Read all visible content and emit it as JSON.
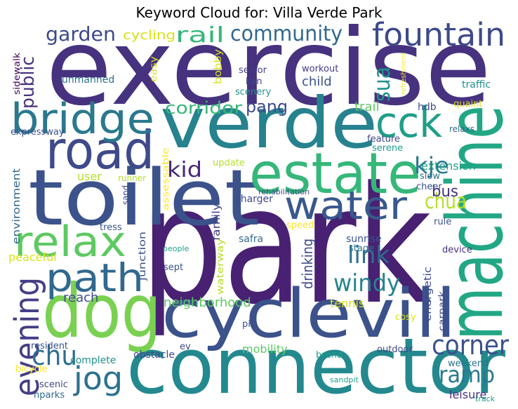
{
  "title": "Keyword Cloud for: Villa Verde Park",
  "words": [
    "exercise",
    "park",
    "verde",
    "toilet",
    "connector",
    "cyclevill",
    "dog",
    "machine",
    "estate",
    "road",
    "bridge",
    "fountain",
    "cck",
    "water",
    "relax",
    "path",
    "evening",
    "jog",
    "chu",
    "corner",
    "ramp",
    "windy",
    "link",
    "kje",
    "chua",
    "bus",
    "kid",
    "corridor",
    "pang",
    "rail",
    "community",
    "garden",
    "cycling",
    "sua",
    "public",
    "senior",
    "kan",
    "scenery",
    "workout",
    "child",
    "bobby",
    "easy",
    "unmanned",
    "sidewalk",
    "refreshment",
    "traffic",
    "trail",
    "hdb",
    "quaint",
    "expressway",
    "relaxs",
    "feature",
    "serene",
    "extension",
    "slow",
    "cheer",
    "update",
    "user",
    "runner",
    "sand",
    "assessable",
    "environment",
    "charger",
    "rehabilitation",
    "family",
    "tress",
    "junction",
    "waterway",
    "safra",
    "speed",
    "rule",
    "drinking",
    "sunrise",
    "stage",
    "device",
    "people",
    "peaceful",
    "sept",
    "reach",
    "neighborhood",
    "energetic",
    "carpark",
    "tennis",
    "pit",
    "cosy",
    "resident",
    "ev",
    "mobility",
    "brand",
    "outdoor",
    "obstacle",
    "weekend",
    "bicycle",
    "complete",
    "sandpit",
    "leisure",
    "track",
    "scenic",
    "nparks"
  ]
}
